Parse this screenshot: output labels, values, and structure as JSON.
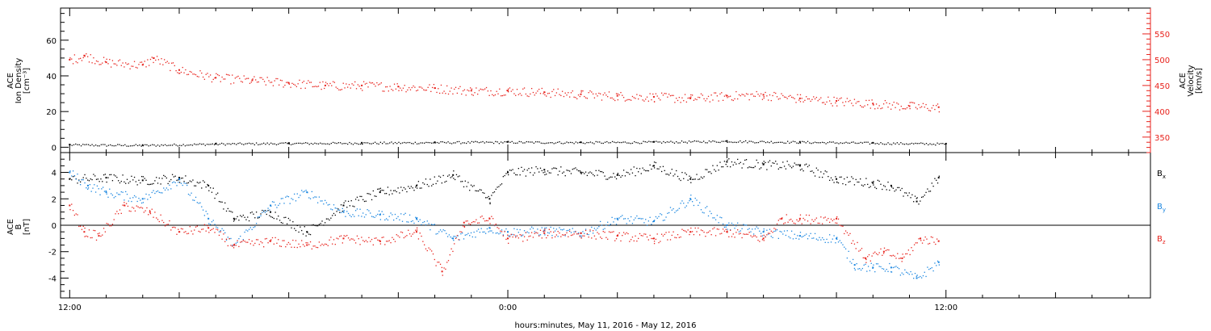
{
  "chart_data": [
    {
      "type": "scatter",
      "panel": "top",
      "ylabel_left": [
        "ACE",
        "Ion Density",
        "[cm⁻³]"
      ],
      "ylabel_right": [
        "ACE",
        "Velocity",
        "[km/s]"
      ],
      "left_ticks": [
        "0",
        "20",
        "40",
        "60"
      ],
      "right_ticks": [
        "350",
        "400",
        "450",
        "500",
        "550"
      ],
      "ylim_left": [
        -3,
        78
      ],
      "ylim_right": [
        320,
        600
      ],
      "colors": {
        "density": "#000000",
        "velocity": "#e8221c"
      },
      "series": [
        {
          "name": "Ion Density",
          "axis": "left",
          "color": "#000000",
          "x": [
            0,
            2,
            4,
            6,
            8,
            10,
            12,
            14,
            16,
            18,
            20,
            22,
            24
          ],
          "values": [
            1.5,
            1.2,
            2.0,
            2.3,
            2.5,
            2.8,
            3.0,
            2.8,
            3.0,
            3.5,
            3.0,
            2.5,
            2.0
          ]
        },
        {
          "name": "Velocity",
          "axis": "right",
          "color": "#e8221c",
          "x": [
            0,
            0.4,
            1,
            2,
            2.3,
            3,
            4,
            5,
            6,
            7,
            8,
            9,
            10,
            11,
            12,
            13,
            14,
            15,
            16,
            17,
            18,
            19,
            20,
            21,
            22,
            23,
            23.8
          ],
          "values": [
            500,
            508,
            495,
            490,
            503,
            480,
            465,
            460,
            455,
            450,
            450,
            448,
            445,
            440,
            440,
            437,
            433,
            430,
            428,
            425,
            430,
            432,
            425,
            420,
            415,
            410,
            408
          ]
        }
      ]
    },
    {
      "type": "scatter",
      "panel": "bottom",
      "ylabel": [
        "ACE",
        "B",
        "[nT]"
      ],
      "y_ticks": [
        "-4",
        "-2",
        "0",
        "2",
        "4"
      ],
      "ylim": [
        -5.5,
        5.5
      ],
      "legend": [
        {
          "label": "B",
          "sub": "x",
          "color": "#000000"
        },
        {
          "label": "B",
          "sub": "y",
          "color": "#1a86e0"
        },
        {
          "label": "B",
          "sub": "z",
          "color": "#e8221c"
        }
      ],
      "series": [
        {
          "name": "Bx",
          "color": "#000000",
          "x": [
            0,
            1,
            2,
            3,
            3.8,
            4.5,
            5.5,
            6.5,
            7.5,
            8.5,
            9.5,
            10.5,
            11.5,
            12,
            13,
            14,
            15,
            16,
            17,
            18,
            19,
            20,
            21,
            22,
            22.5,
            23.2,
            23.8
          ],
          "values": [
            3.5,
            3.6,
            3.4,
            3.6,
            3.0,
            0.5,
            1.0,
            -0.5,
            1.5,
            2.5,
            3.0,
            3.8,
            2.0,
            4.0,
            4.2,
            4.0,
            3.8,
            4.5,
            3.5,
            4.8,
            4.6,
            4.5,
            3.5,
            3.2,
            3.0,
            1.8,
            3.6
          ]
        },
        {
          "name": "By",
          "color": "#1a86e0",
          "x": [
            0,
            0.5,
            1,
            2,
            3,
            3.8,
            4.5,
            5.5,
            6.5,
            7.5,
            8.5,
            9.5,
            10.5,
            11.5,
            12,
            13,
            14,
            15,
            16,
            17,
            18,
            19,
            20,
            21,
            21.5,
            22,
            22.5,
            23.2,
            23.8
          ],
          "values": [
            4.0,
            3.0,
            2.5,
            2.0,
            3.5,
            0.5,
            -1.5,
            1.5,
            2.5,
            1.0,
            0.8,
            0.5,
            -1.0,
            -0.2,
            -0.5,
            -0.4,
            -0.6,
            0.5,
            0.3,
            2.0,
            0.0,
            -0.5,
            -0.8,
            -1.0,
            -3.0,
            -3.2,
            -3.2,
            -4.0,
            -2.8
          ]
        },
        {
          "name": "Bz",
          "color": "#e8221c",
          "x": [
            0,
            0.4,
            0.8,
            1.5,
            2.2,
            3,
            3.8,
            4.5,
            5.5,
            6.5,
            7.5,
            8.5,
            9.5,
            10.2,
            10.8,
            11.5,
            12,
            13,
            14,
            15,
            16,
            17,
            18,
            19,
            19.5,
            20,
            21,
            21.8,
            22.3,
            22.8,
            23.3,
            23.8
          ],
          "values": [
            1.5,
            -0.5,
            -0.8,
            1.5,
            1.0,
            -0.5,
            -0.2,
            -1.5,
            -1.2,
            -1.5,
            -1.0,
            -1.2,
            -0.5,
            -3.5,
            0.2,
            0.5,
            -1.0,
            -0.6,
            -0.6,
            -0.8,
            -1.0,
            -0.5,
            -0.5,
            -1.0,
            0.5,
            0.5,
            0.5,
            -2.5,
            -2.0,
            -2.5,
            -1.0,
            -1.2
          ]
        }
      ]
    }
  ],
  "x_axis": {
    "tick_labels": [
      "12:00",
      "0:00",
      "12:00"
    ],
    "tick_hours": [
      0,
      12,
      24
    ],
    "range_hours": [
      -0.25,
      29.6
    ],
    "title": "hours:minutes, May 11, 2016 - May 12, 2016"
  }
}
